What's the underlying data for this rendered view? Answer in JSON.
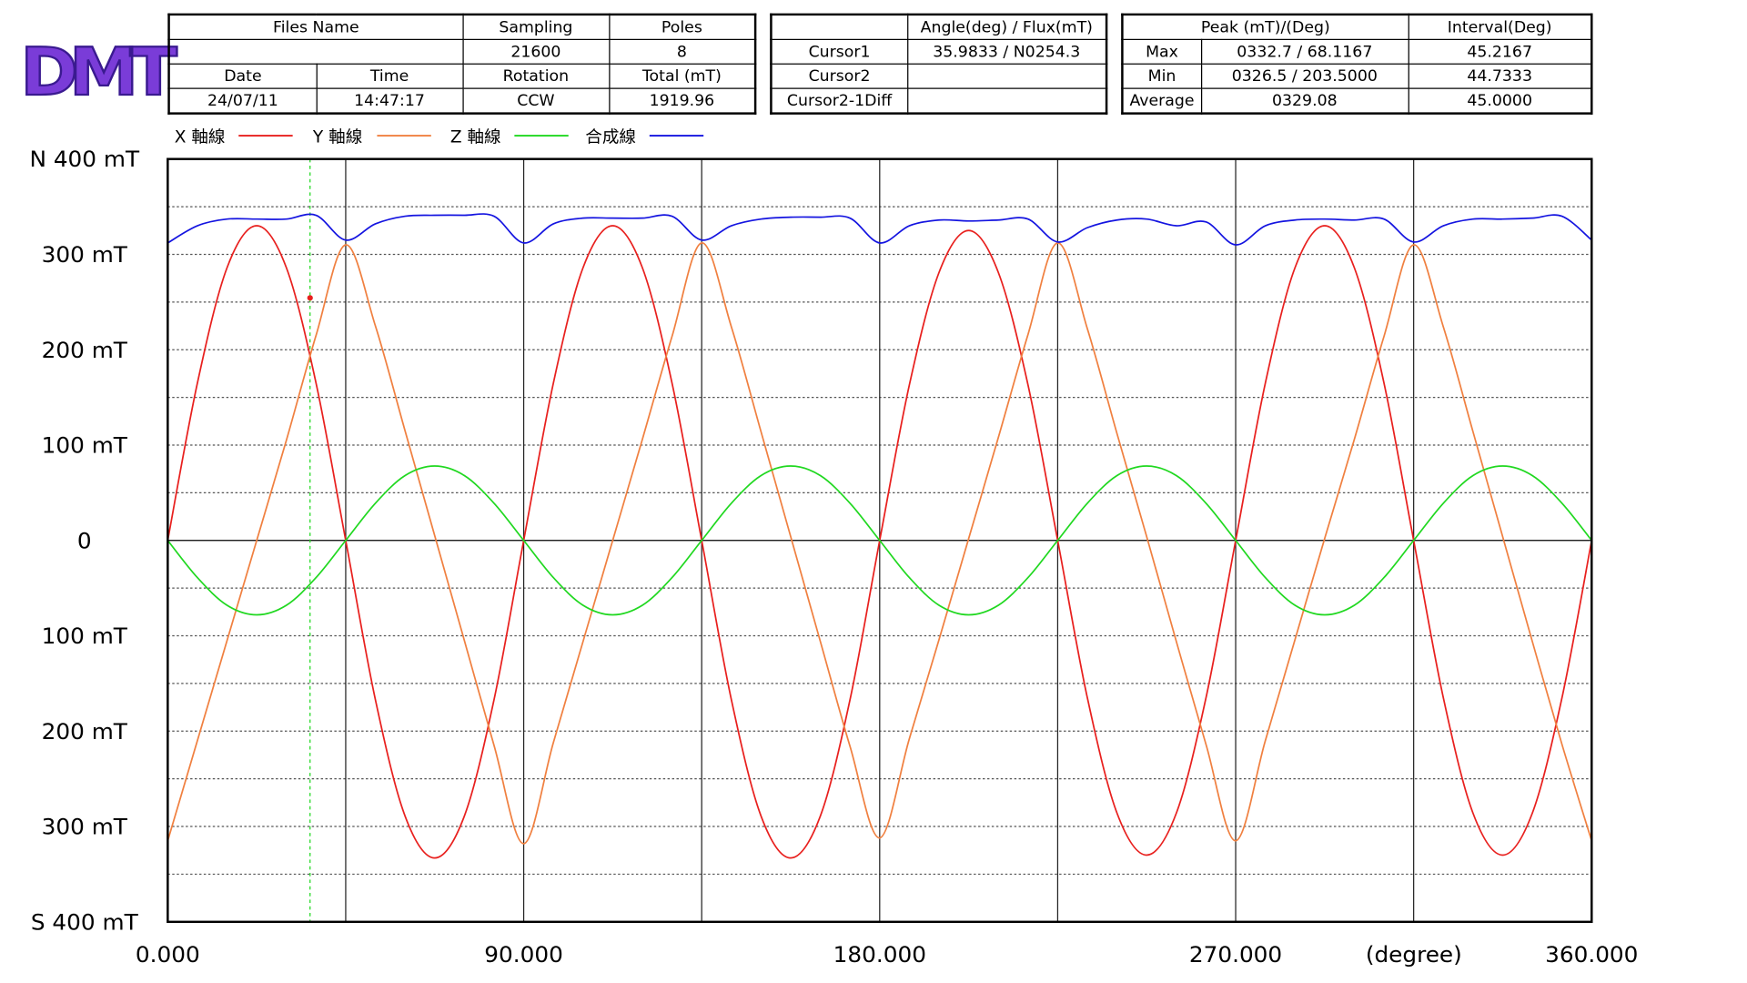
{
  "logo": "DMT",
  "info_table": {
    "header": [
      "Files Name",
      "Sampling",
      "Poles"
    ],
    "row1": [
      "21600",
      "8"
    ],
    "row2": [
      "Date",
      "Time",
      "Rotation",
      "Total (mT)"
    ],
    "row3": [
      "24/07/11",
      "14:47:17",
      "CCW",
      "1919.96"
    ]
  },
  "cursor_table": {
    "header": "Angle(deg) / Flux(mT)",
    "rows": [
      [
        "Cursor1",
        "35.9833 / N0254.3"
      ],
      [
        "Cursor2"
      ],
      [
        "Cursor2-1Diff"
      ]
    ]
  },
  "peak_table": {
    "header": [
      "Peak (mT)/(Deg)",
      "Interval(Deg)"
    ],
    "rows": [
      [
        "Max",
        "0332.7 / 68.1167",
        "45.2167"
      ],
      [
        "Min",
        "0326.5 / 203.5000",
        "44.7333"
      ],
      [
        "Average",
        "0329.08",
        "45.0000"
      ]
    ]
  },
  "chart_data": {
    "type": "line",
    "x_label": "(degree)",
    "x": [
      0,
      7.5,
      15,
      22.5,
      30,
      37.5,
      45,
      52.5,
      60,
      67.5,
      75,
      82.5,
      90,
      97.5,
      105,
      112.5,
      120,
      127.5,
      135,
      142.5,
      150,
      157.5,
      165,
      172.5,
      180,
      187.5,
      195,
      202.5,
      210,
      217.5,
      225,
      232.5,
      240,
      247.5,
      255,
      262.5,
      270,
      277.5,
      285,
      292.5,
      300,
      307.5,
      315,
      322.5,
      330,
      337.5,
      345,
      352.5,
      360
    ],
    "series": [
      {
        "name": "X 軸線",
        "color": "#e8201e",
        "values": [
          0,
          165,
          286,
          330,
          286,
          165,
          0,
          -167,
          -289,
          -333,
          -289,
          -167,
          0,
          165,
          286,
          330,
          286,
          165,
          0,
          -167,
          -289,
          -333,
          -289,
          -167,
          0,
          163,
          281,
          325,
          281,
          163,
          0,
          -165,
          -286,
          -330,
          -286,
          -165,
          0,
          165,
          286,
          330,
          286,
          165,
          0,
          -165,
          -286,
          -330,
          -286,
          -165,
          0
        ]
      },
      {
        "name": "Y 軸線",
        "color": "#f08040",
        "values": [
          -315,
          -210,
          -105,
          0,
          105,
          215,
          310,
          225,
          115,
          5,
          -105,
          -215,
          -318,
          -212,
          -106,
          0,
          106,
          214,
          312,
          224,
          114,
          4,
          -106,
          -216,
          -312,
          -208,
          -104,
          2,
          108,
          216,
          312,
          222,
          112,
          4,
          -106,
          -214,
          -315,
          -210,
          -104,
          2,
          106,
          214,
          310,
          224,
          114,
          4,
          -106,
          -214,
          -315
        ]
      },
      {
        "name": "Z 軸線",
        "color": "#20d820",
        "values": [
          0,
          -39,
          -68,
          -78,
          -68,
          -39,
          0,
          39,
          68,
          78,
          68,
          39,
          0,
          -39,
          -68,
          -78,
          -68,
          -39,
          0,
          39,
          68,
          78,
          68,
          39,
          0,
          -39,
          -68,
          -78,
          -68,
          -39,
          0,
          39,
          68,
          78,
          68,
          39,
          0,
          -39,
          -68,
          -78,
          -68,
          -39,
          0,
          39,
          68,
          78,
          68,
          39,
          0
        ]
      },
      {
        "name": "合成線",
        "color": "#1414e0",
        "values": [
          312,
          330,
          337,
          337,
          337,
          341,
          315,
          332,
          340,
          341,
          341,
          340,
          312,
          332,
          338,
          338,
          338,
          340,
          315,
          330,
          337,
          339,
          339,
          338,
          312,
          330,
          336,
          335,
          336,
          337,
          313,
          328,
          336,
          337,
          330,
          334,
          310,
          330,
          336,
          337,
          336,
          337,
          313,
          330,
          337,
          337,
          338,
          340,
          315
        ]
      }
    ],
    "xlim": [
      0,
      360
    ],
    "xticks": [
      {
        "value": 0,
        "label": "0.000"
      },
      {
        "value": 90,
        "label": "90.000"
      },
      {
        "value": 180,
        "label": "180.000"
      },
      {
        "value": 270,
        "label": "270.000"
      },
      {
        "value": 360,
        "label": "360.000"
      }
    ],
    "minor_xticks": [
      45,
      135,
      225,
      315
    ],
    "ylim": [
      -400,
      400
    ],
    "yticks": [
      {
        "value": 400,
        "label": "N 400 mT"
      },
      {
        "value": 300,
        "label": "300 mT"
      },
      {
        "value": 200,
        "label": "200 mT"
      },
      {
        "value": 100,
        "label": "100 mT"
      },
      0,
      {
        "value": -100,
        "label": "100 mT"
      },
      {
        "value": -200,
        "label": "200 mT"
      },
      {
        "value": -300,
        "label": "300 mT"
      },
      {
        "value": -400,
        "label": "S 400 mT"
      }
    ],
    "minor_yticks": [
      350,
      250,
      150,
      50,
      -50,
      -150,
      -250,
      -350
    ],
    "grid": true,
    "cursor": {
      "x": 35.9833,
      "y": 254.3,
      "color": "#20d820"
    }
  }
}
